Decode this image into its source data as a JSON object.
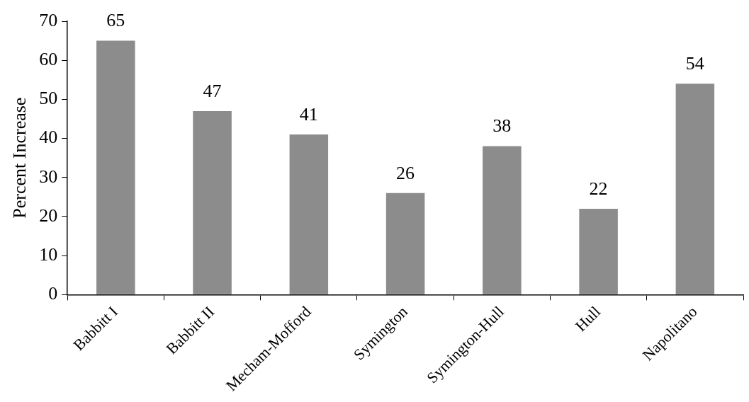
{
  "chart_data": {
    "type": "bar",
    "ylabel": "Percent Increase",
    "categories": [
      "Babbitt I",
      "Babbitt II",
      "Mecham-Mofford",
      "Symington",
      "Symington-Hull",
      "Hull",
      "Napolitano"
    ],
    "values": [
      65,
      47,
      41,
      26,
      38,
      22,
      54
    ],
    "color": "#8c8c8c",
    "ylim": [
      0,
      70
    ],
    "yticks": [
      0,
      10,
      20,
      30,
      40,
      50,
      60,
      70
    ],
    "grid": false,
    "legend": false,
    "data_labels": true
  }
}
